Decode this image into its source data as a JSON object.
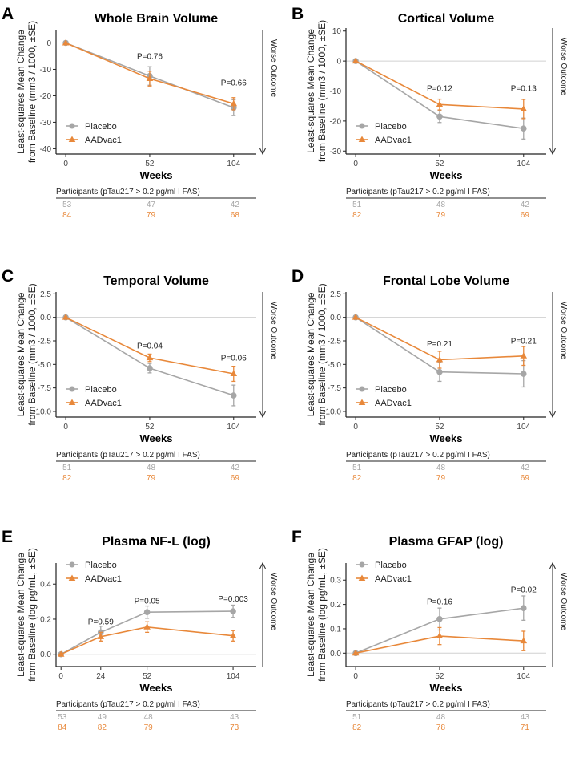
{
  "colors": {
    "placebo": "#A6A6A6",
    "aadvac1": "#E8883A",
    "axis": "#222222",
    "zero": "#D0D0D0"
  },
  "shared": {
    "xlabel": "Weeks",
    "ylabel_line1": "Least-squares Mean Change",
    "worse_outcome": "Worse Outcome",
    "participants_label": "Participants (pTau217 > 0.2 pg/ml I FAS)",
    "legend_placebo": "Placebo",
    "legend_aadvac1": "AADvac1"
  },
  "chart_data": [
    {
      "panel": "A",
      "type": "line",
      "title": "Whole Brain Volume",
      "ylabel_line2": "from Baseline (mm3 / 1000, ±SE)",
      "ylim": [
        -42,
        5
      ],
      "yticks": [
        0,
        -10,
        -20,
        -30,
        -40
      ],
      "ytick_labels": [
        "0",
        "-10",
        "-20",
        "-30",
        "-40"
      ],
      "x": [
        0,
        52,
        104
      ],
      "xlim": [
        -6,
        118
      ],
      "xticks": [
        0,
        52,
        104
      ],
      "arrow_direction": "down",
      "series": [
        {
          "name": "Placebo",
          "values": [
            0,
            -12.5,
            -24.5
          ],
          "se": [
            0,
            3.5,
            3.0
          ]
        },
        {
          "name": "AADvac1",
          "values": [
            0,
            -13.5,
            -23.0
          ],
          "se": [
            0,
            2.8,
            2.3
          ]
        }
      ],
      "pvalues": [
        {
          "x": 52,
          "label": "P=0.76",
          "y": -6
        },
        {
          "x": 104,
          "label": "P=0.66",
          "y": -16
        }
      ],
      "participants": {
        "placebo": [
          "53",
          "47",
          "42"
        ],
        "aadvac1": [
          "84",
          "79",
          "68"
        ]
      }
    },
    {
      "panel": "B",
      "type": "line",
      "title": "Cortical Volume",
      "ylabel_line2": "from Baseline (mm3 / 1000, ±SE)",
      "ylim": [
        -31,
        11
      ],
      "yticks": [
        10,
        0,
        -10,
        -20,
        -30
      ],
      "ytick_labels": [
        "10",
        "0",
        "-10",
        "-20",
        "-30"
      ],
      "x": [
        0,
        52,
        104
      ],
      "xlim": [
        -6,
        118
      ],
      "xticks": [
        0,
        52,
        104
      ],
      "arrow_direction": "down",
      "series": [
        {
          "name": "Placebo",
          "values": [
            0,
            -18.5,
            -22.5
          ],
          "se": [
            0,
            2.0,
            3.5
          ]
        },
        {
          "name": "AADvac1",
          "values": [
            0,
            -14.5,
            -16.0
          ],
          "se": [
            0,
            1.8,
            3.2
          ]
        }
      ],
      "pvalues": [
        {
          "x": 52,
          "label": "P=0.12",
          "y": -10
        },
        {
          "x": 104,
          "label": "P=0.13",
          "y": -10
        }
      ],
      "participants": {
        "placebo": [
          "51",
          "48",
          "42"
        ],
        "aadvac1": [
          "82",
          "79",
          "69"
        ]
      }
    },
    {
      "panel": "C",
      "type": "line",
      "title": "Temporal Volume",
      "ylabel_line2": "from Baseline (mm3 / 1000, ±SE)",
      "ylim": [
        -10.6,
        2.7
      ],
      "yticks": [
        2.5,
        0,
        -2.5,
        -5,
        -7.5,
        -10
      ],
      "ytick_labels": [
        "2.5",
        "0.0",
        "-2.5",
        "-5.0",
        "-7.5",
        "-10.0"
      ],
      "x": [
        0,
        52,
        104
      ],
      "xlim": [
        -6,
        118
      ],
      "xticks": [
        0,
        52,
        104
      ],
      "arrow_direction": "down",
      "series": [
        {
          "name": "Placebo",
          "values": [
            0,
            -5.4,
            -8.3
          ],
          "se": [
            0,
            0.5,
            1.1
          ]
        },
        {
          "name": "AADvac1",
          "values": [
            0,
            -4.3,
            -6.0
          ],
          "se": [
            0,
            0.4,
            0.8
          ]
        }
      ],
      "pvalues": [
        {
          "x": 52,
          "label": "P=0.04",
          "y": -3.3
        },
        {
          "x": 104,
          "label": "P=0.06",
          "y": -4.6
        }
      ],
      "participants": {
        "placebo": [
          "51",
          "48",
          "42"
        ],
        "aadvac1": [
          "82",
          "79",
          "69"
        ]
      }
    },
    {
      "panel": "D",
      "type": "line",
      "title": "Frontal Lobe Volume",
      "ylabel_line2": "from Baseline (mm3 / 1000, ±SE)",
      "ylim": [
        -10.6,
        2.7
      ],
      "yticks": [
        2.5,
        0,
        -2.5,
        -5,
        -7.5,
        -10
      ],
      "ytick_labels": [
        "2.5",
        "0.0",
        "-2.5",
        "-5.0",
        "-7.5",
        "-10.0"
      ],
      "x": [
        0,
        52,
        104
      ],
      "xlim": [
        -6,
        118
      ],
      "xticks": [
        0,
        52,
        104
      ],
      "arrow_direction": "down",
      "series": [
        {
          "name": "Placebo",
          "values": [
            0,
            -5.8,
            -6.0
          ],
          "se": [
            0,
            1.0,
            1.4
          ]
        },
        {
          "name": "AADvac1",
          "values": [
            0,
            -4.5,
            -4.1
          ],
          "se": [
            0,
            0.9,
            1.0
          ]
        }
      ],
      "pvalues": [
        {
          "x": 52,
          "label": "P=0.21",
          "y": -3.1
        },
        {
          "x": 104,
          "label": "P=0.21",
          "y": -2.8
        }
      ],
      "participants": {
        "placebo": [
          "51",
          "48",
          "42"
        ],
        "aadvac1": [
          "82",
          "79",
          "69"
        ]
      }
    },
    {
      "panel": "E",
      "type": "line",
      "title": "Plasma NF-L (log)",
      "ylabel_line2": "from Baseline (log pg/mL, ±SE)",
      "ylim": [
        -0.07,
        0.52
      ],
      "yticks": [
        0,
        0.2,
        0.4
      ],
      "ytick_labels": [
        "0.0",
        "0.2",
        "0.4"
      ],
      "x": [
        0,
        24,
        52,
        104
      ],
      "xlim": [
        -3,
        118
      ],
      "xticks": [
        0,
        24,
        52,
        104
      ],
      "arrow_direction": "up",
      "series": [
        {
          "name": "Placebo",
          "values": [
            0,
            0.125,
            0.24,
            0.245
          ],
          "se": [
            0,
            0.035,
            0.035,
            0.035
          ]
        },
        {
          "name": "AADvac1",
          "values": [
            0,
            0.1,
            0.155,
            0.105
          ],
          "se": [
            0,
            0.025,
            0.03,
            0.03
          ]
        }
      ],
      "pvalues": [
        {
          "x": 24,
          "label": "P=0.59",
          "y": 0.17
        },
        {
          "x": 52,
          "label": "P=0.05",
          "y": 0.29
        },
        {
          "x": 104,
          "label": "P=0.003",
          "y": 0.3
        }
      ],
      "participants": {
        "placebo": [
          "53",
          "49",
          "48",
          "43"
        ],
        "aadvac1": [
          "84",
          "82",
          "79",
          "73"
        ]
      }
    },
    {
      "panel": "F",
      "type": "line",
      "title": "Plasma GFAP (log)",
      "ylabel_line2": "from Baseline (log pg/mL, ±SE)",
      "ylim": [
        -0.055,
        0.37
      ],
      "yticks": [
        0,
        0.1,
        0.2,
        0.3
      ],
      "ytick_labels": [
        "0.0",
        "0.1",
        "0.2",
        "0.3"
      ],
      "x": [
        0,
        52,
        104
      ],
      "xlim": [
        -6,
        118
      ],
      "xticks": [
        0,
        52,
        104
      ],
      "arrow_direction": "up",
      "series": [
        {
          "name": "Placebo",
          "values": [
            0,
            0.14,
            0.185
          ],
          "se": [
            0,
            0.045,
            0.05
          ]
        },
        {
          "name": "AADvac1",
          "values": [
            0,
            0.07,
            0.05
          ],
          "se": [
            0,
            0.035,
            0.04
          ]
        }
      ],
      "pvalues": [
        {
          "x": 52,
          "label": "P=0.16",
          "y": 0.2
        },
        {
          "x": 104,
          "label": "P=0.02",
          "y": 0.25
        }
      ],
      "participants": {
        "placebo": [
          "51",
          "48",
          "43"
        ],
        "aadvac1": [
          "82",
          "78",
          "71"
        ]
      }
    }
  ]
}
